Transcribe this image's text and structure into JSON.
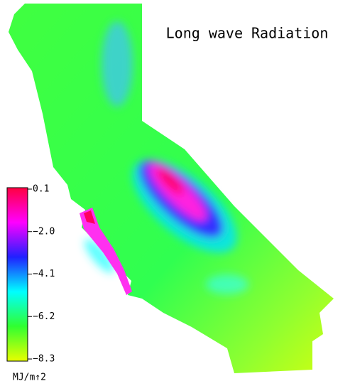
{
  "title": "Long wave Radiation",
  "colorbar": {
    "range": [
      -8.3,
      0.1
    ],
    "colors": [
      "#ff0040",
      "#ff00ff",
      "#2020ff",
      "#00ffff",
      "#30ff30",
      "#e8ff00"
    ],
    "ticks": [
      {
        "value": 0.1,
        "label": "0.1"
      },
      {
        "value": -2.0,
        "label": "−2.0"
      },
      {
        "value": -4.1,
        "label": "−4.1"
      },
      {
        "value": -6.2,
        "label": "−6.2"
      },
      {
        "value": -8.3,
        "label": "−8.3"
      }
    ],
    "unit": "MJ/m↑2"
  }
}
